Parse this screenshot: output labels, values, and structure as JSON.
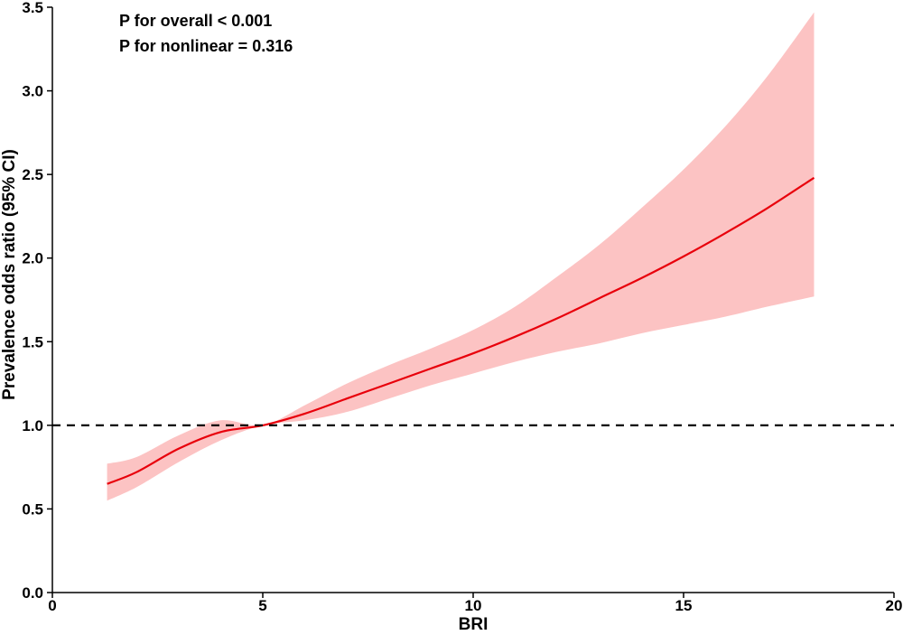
{
  "chart_data": {
    "type": "line",
    "title": "",
    "xlabel": "BRI",
    "ylabel": "Prevalence odds ratio (95% CI)",
    "xlim": [
      0,
      20
    ],
    "ylim": [
      0,
      3.5
    ],
    "xticks": [
      0,
      5,
      10,
      15,
      20
    ],
    "xtick_labels": [
      "0",
      "5",
      "10",
      "15",
      "20"
    ],
    "yticks": [
      0,
      0.5,
      1,
      1.5,
      2,
      2.5,
      3,
      3.5
    ],
    "ytick_labels": [
      "0.0",
      "0.5",
      "1.0",
      "1.5",
      "2.0",
      "2.5",
      "3.0",
      "3.5"
    ],
    "reference_line": {
      "y": 1.0,
      "style": "dashed",
      "color": "#000000"
    },
    "annotations": [
      "P for overall < 0.001",
      "P for nonlinear = 0.316"
    ],
    "series": [
      {
        "x": [
          1.3,
          2,
          3,
          4,
          5,
          6,
          7,
          8,
          9,
          10,
          11,
          12,
          13,
          14,
          15,
          16,
          17,
          18.1
        ],
        "y": [
          0.65,
          0.72,
          0.86,
          0.96,
          1.0,
          1.07,
          1.16,
          1.25,
          1.34,
          1.43,
          1.53,
          1.64,
          1.76,
          1.88,
          2.01,
          2.15,
          2.3,
          2.48
        ],
        "ci_lower": [
          0.55,
          0.63,
          0.78,
          0.91,
          1.0,
          1.03,
          1.08,
          1.16,
          1.24,
          1.31,
          1.38,
          1.44,
          1.49,
          1.55,
          1.6,
          1.65,
          1.71,
          1.77
        ],
        "ci_upper": [
          0.77,
          0.81,
          0.94,
          1.03,
          1.0,
          1.12,
          1.25,
          1.36,
          1.46,
          1.57,
          1.71,
          1.89,
          2.08,
          2.3,
          2.53,
          2.79,
          3.09,
          3.47
        ],
        "color": "#e8000b",
        "band_color": "#fcc3c3"
      }
    ]
  }
}
